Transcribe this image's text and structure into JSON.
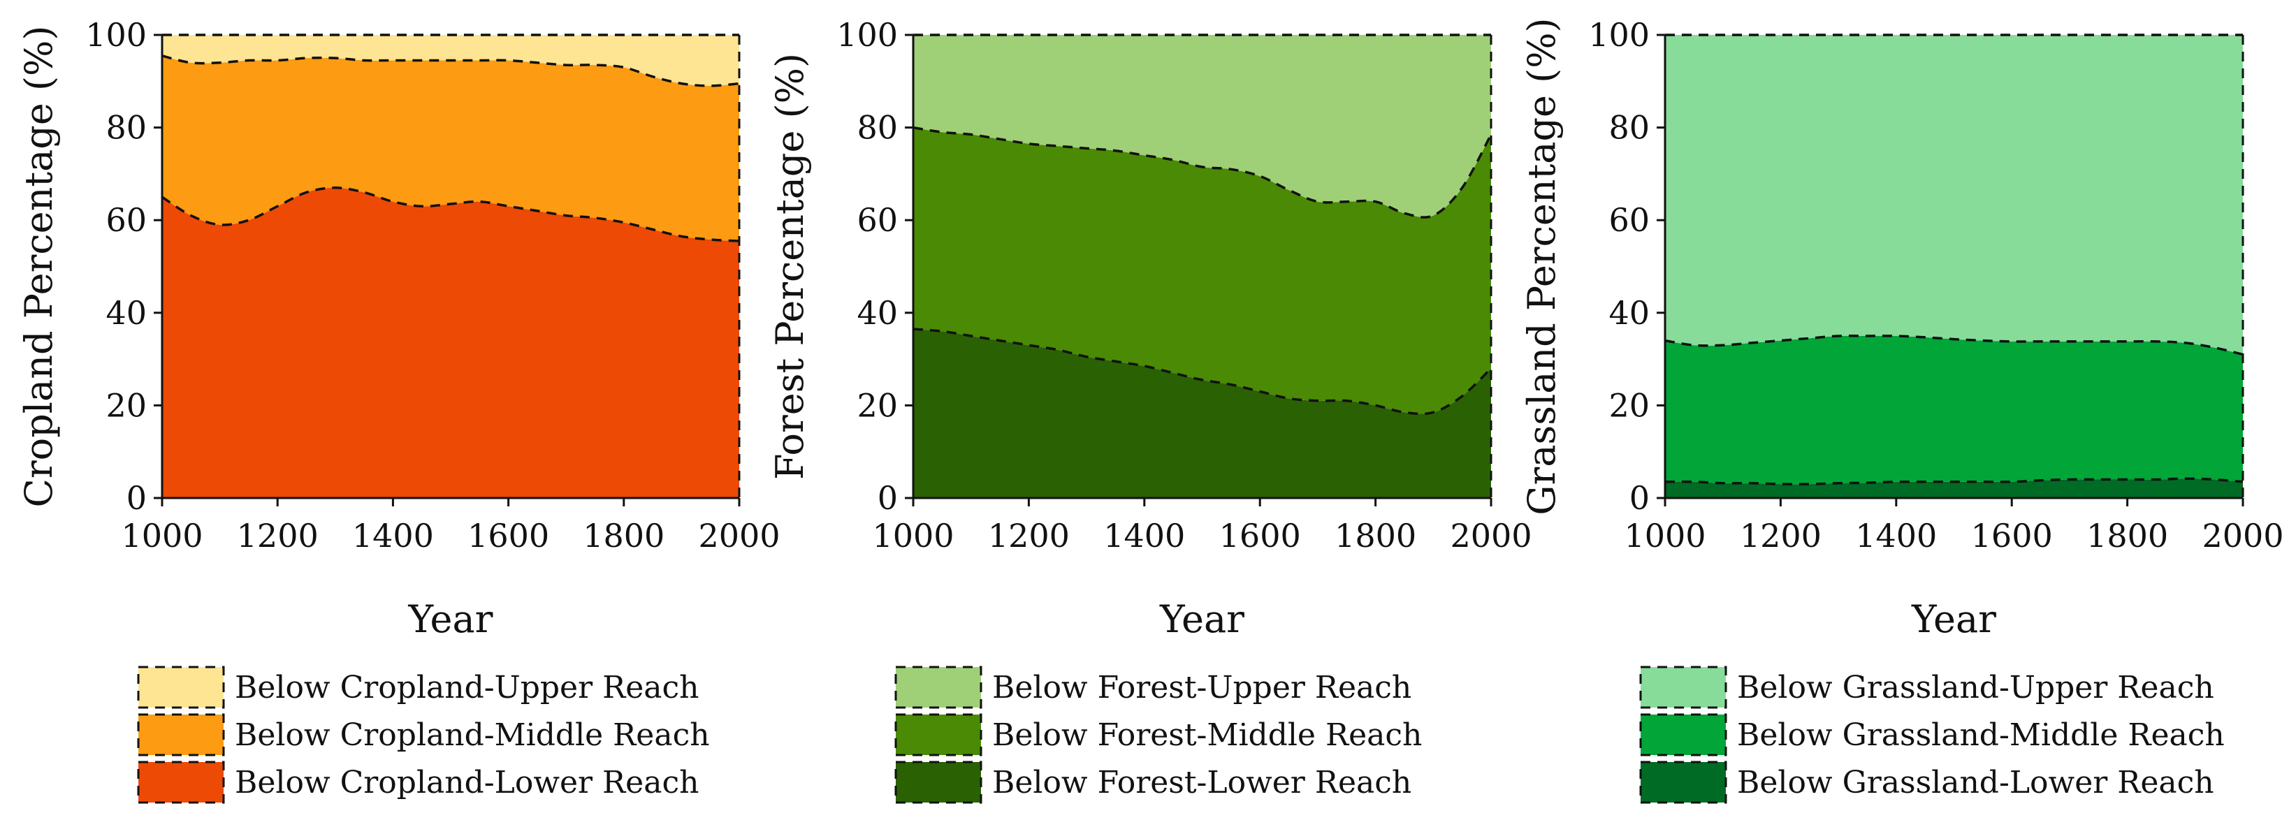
{
  "chart_data": [
    {
      "type": "area",
      "stacked": true,
      "xlabel": "Year",
      "ylabel": "Cropland Percentage (%)",
      "xlim": [
        1000,
        2000
      ],
      "ylim": [
        0,
        100
      ],
      "x_ticks": [
        "1000",
        "1200",
        "1400",
        "1600",
        "1800",
        "2000"
      ],
      "y_ticks": [
        "0",
        "20",
        "40",
        "60",
        "80",
        "100"
      ],
      "x": [
        1000,
        1050,
        1100,
        1150,
        1200,
        1250,
        1300,
        1350,
        1400,
        1450,
        1500,
        1550,
        1600,
        1650,
        1700,
        1750,
        1800,
        1850,
        1900,
        1950,
        2000
      ],
      "series": [
        {
          "name": "Below Cropland-Lower Reach",
          "color": "#ec4a05",
          "values": [
            65,
            61,
            59,
            60,
            63,
            66,
            67,
            66,
            64,
            63,
            63.5,
            64,
            63,
            62,
            61,
            60.5,
            59.5,
            58,
            56.5,
            55.8,
            55.5
          ]
        },
        {
          "name": "Below Cropland-Middle Reach",
          "color": "#fd9b12",
          "values": [
            30.5,
            33,
            35,
            34.5,
            31.5,
            29,
            28,
            28.5,
            30.5,
            31.5,
            31,
            30.5,
            31.5,
            32,
            32.5,
            33,
            33.5,
            33,
            33,
            33.2,
            34
          ]
        },
        {
          "name": "Below Cropland-Upper Reach",
          "color": "#fde594",
          "values": [
            4.5,
            6,
            6,
            5.5,
            5.5,
            5,
            5,
            5.5,
            5.5,
            5.5,
            5.5,
            5.5,
            5.5,
            6,
            6.5,
            6.5,
            7,
            9,
            10.5,
            11,
            10.5
          ]
        }
      ],
      "legend_position": "bottom"
    },
    {
      "type": "area",
      "stacked": true,
      "xlabel": "Year",
      "ylabel": "Forest Percentage (%)",
      "xlim": [
        1000,
        2000
      ],
      "ylim": [
        0,
        100
      ],
      "x_ticks": [
        "1000",
        "1200",
        "1400",
        "1600",
        "1800",
        "2000"
      ],
      "y_ticks": [
        "0",
        "20",
        "40",
        "60",
        "80",
        "100"
      ],
      "x": [
        1000,
        1050,
        1100,
        1150,
        1200,
        1250,
        1300,
        1350,
        1400,
        1450,
        1500,
        1550,
        1600,
        1650,
        1700,
        1750,
        1800,
        1850,
        1900,
        1950,
        2000
      ],
      "series": [
        {
          "name": "Below Forest-Lower Reach",
          "color": "#2a6103",
          "values": [
            36.5,
            36,
            35,
            34,
            33,
            32,
            30.5,
            29.5,
            28.5,
            27,
            25.5,
            24.5,
            23,
            21.5,
            21,
            21,
            20,
            18.5,
            18.5,
            22,
            28
          ]
        },
        {
          "name": "Below Forest-Middle Reach",
          "color": "#4a8a05",
          "values": [
            43.5,
            43,
            43.5,
            43.5,
            43.5,
            44,
            45,
            45.5,
            45.5,
            46,
            46,
            46.5,
            46.5,
            45,
            43,
            43,
            44,
            43,
            42.5,
            45,
            50.5
          ]
        },
        {
          "name": "Below Forest-Upper Reach",
          "color": "#9fd078",
          "values": [
            20,
            21,
            21.5,
            22.5,
            23.5,
            24,
            24.5,
            25,
            26,
            27,
            28.5,
            29,
            30.5,
            33.5,
            36,
            36,
            36,
            38.5,
            39,
            33,
            21.5
          ]
        }
      ],
      "legend_position": "bottom"
    },
    {
      "type": "area",
      "stacked": true,
      "xlabel": "Year",
      "ylabel": "Grassland Percentage (%)",
      "xlim": [
        1000,
        2000
      ],
      "ylim": [
        0,
        100
      ],
      "x_ticks": [
        "1000",
        "1200",
        "1400",
        "1600",
        "1800",
        "2000"
      ],
      "y_ticks": [
        "0",
        "20",
        "40",
        "60",
        "80",
        "100"
      ],
      "x": [
        1000,
        1050,
        1100,
        1150,
        1200,
        1250,
        1300,
        1350,
        1400,
        1450,
        1500,
        1550,
        1600,
        1650,
        1700,
        1750,
        1800,
        1850,
        1900,
        1950,
        2000
      ],
      "series": [
        {
          "name": "Below Grassland-Lower Reach",
          "color": "#006b24",
          "values": [
            3.5,
            3.5,
            3.2,
            3.2,
            3,
            3,
            3.2,
            3.3,
            3.5,
            3.5,
            3.5,
            3.5,
            3.5,
            3.8,
            4,
            4,
            4,
            4,
            4.2,
            4,
            3.5
          ]
        },
        {
          "name": "Below Grassland-Middle Reach",
          "color": "#02a537",
          "values": [
            30.5,
            29.5,
            29.8,
            30.3,
            31,
            31.5,
            31.8,
            31.7,
            31.5,
            31.2,
            30.8,
            30.5,
            30.3,
            30,
            29.8,
            29.8,
            29.8,
            29.8,
            29.3,
            28.5,
            27.5
          ]
        },
        {
          "name": "Below Grassland-Upper Reach",
          "color": "#87dc9a",
          "values": [
            66,
            67,
            67,
            66.5,
            66,
            65.5,
            65,
            65,
            65,
            65.3,
            65.7,
            66,
            66.2,
            66.2,
            66.2,
            66.2,
            66.2,
            66.2,
            66.5,
            67.5,
            69
          ]
        }
      ],
      "legend_position": "bottom"
    }
  ]
}
